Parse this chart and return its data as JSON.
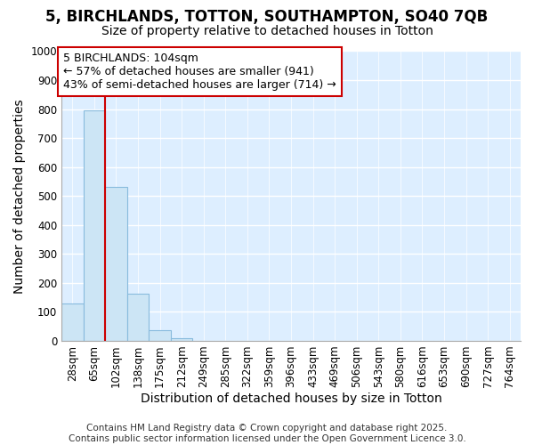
{
  "title_line1": "5, BIRCHLANDS, TOTTON, SOUTHAMPTON, SO40 7QB",
  "title_line2": "Size of property relative to detached houses in Totton",
  "xlabel": "Distribution of detached houses by size in Totton",
  "ylabel": "Number of detached properties",
  "categories": [
    "28sqm",
    "65sqm",
    "102sqm",
    "138sqm",
    "175sqm",
    "212sqm",
    "249sqm",
    "285sqm",
    "322sqm",
    "359sqm",
    "396sqm",
    "433sqm",
    "469sqm",
    "506sqm",
    "543sqm",
    "580sqm",
    "616sqm",
    "653sqm",
    "690sqm",
    "727sqm",
    "764sqm"
  ],
  "values": [
    130,
    795,
    530,
    162,
    38,
    10,
    0,
    0,
    0,
    0,
    0,
    0,
    0,
    0,
    0,
    0,
    0,
    0,
    0,
    0,
    0
  ],
  "bar_color": "#cce5f5",
  "bar_edge_color": "#88bbdd",
  "vline_x_index": 2,
  "vline_color": "#cc0000",
  "annotation_text": "5 BIRCHLANDS: 104sqm\n← 57% of detached houses are smaller (941)\n43% of semi-detached houses are larger (714) →",
  "annotation_box_facecolor": "#ffffff",
  "annotation_box_edgecolor": "#cc0000",
  "ylim": [
    0,
    1000
  ],
  "yticks": [
    0,
    100,
    200,
    300,
    400,
    500,
    600,
    700,
    800,
    900,
    1000
  ],
  "footer_line1": "Contains HM Land Registry data © Crown copyright and database right 2025.",
  "footer_line2": "Contains public sector information licensed under the Open Government Licence 3.0.",
  "fig_bg_color": "#ffffff",
  "plot_bg_color": "#ddeeff",
  "grid_color": "#ffffff",
  "title_fontsize": 12,
  "subtitle_fontsize": 10,
  "axis_label_fontsize": 10,
  "tick_fontsize": 8.5,
  "annotation_fontsize": 9,
  "footer_fontsize": 7.5
}
